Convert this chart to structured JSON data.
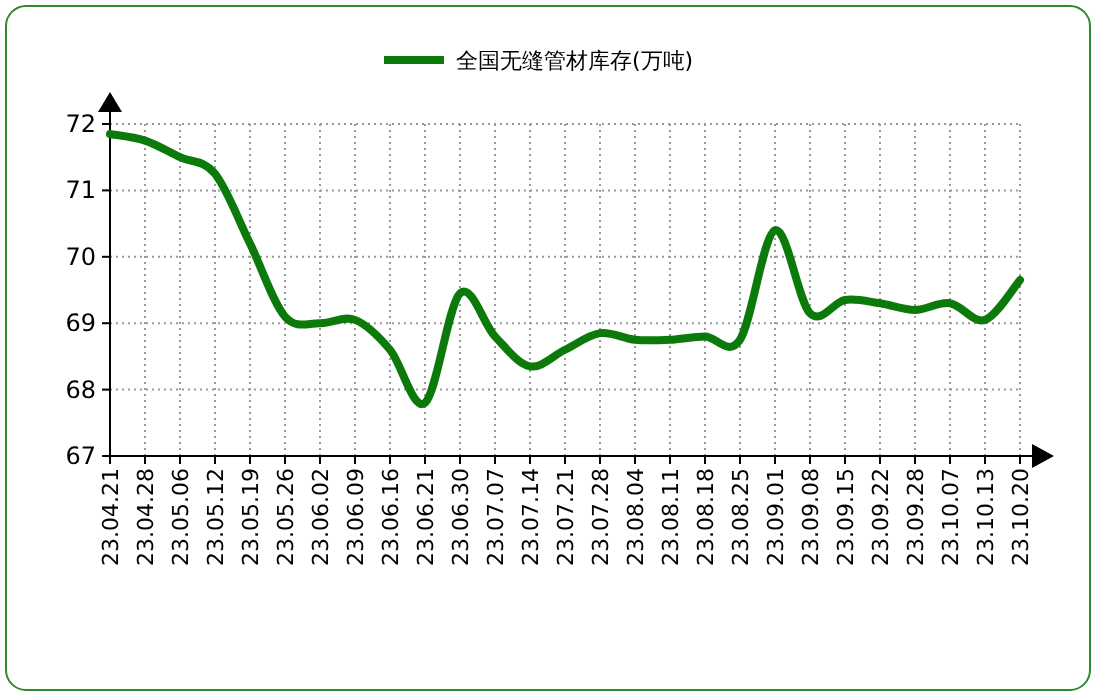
{
  "chart_data": {
    "type": "line",
    "categories": [
      "23.04.21",
      "23.04.28",
      "23.05.06",
      "23.05.12",
      "23.05.19",
      "23.05.26",
      "23.06.02",
      "23.06.09",
      "23.06.16",
      "23.06.21",
      "23.06.30",
      "23.07.07",
      "23.07.14",
      "23.07.21",
      "23.07.28",
      "23.08.04",
      "23.08.11",
      "23.08.18",
      "23.08.25",
      "23.09.01",
      "23.09.08",
      "23.09.15",
      "23.09.22",
      "23.09.28",
      "23.10.07",
      "23.10.13",
      "23.10.20"
    ],
    "series": [
      {
        "name": "全国无缝管材库存(万吨)",
        "color": "#0b7a0b",
        "values": [
          71.85,
          71.75,
          71.5,
          71.25,
          70.2,
          69.1,
          69.0,
          69.05,
          68.6,
          67.8,
          69.45,
          68.8,
          68.35,
          68.6,
          68.85,
          68.75,
          68.75,
          68.8,
          68.75,
          70.4,
          69.15,
          69.35,
          69.3,
          69.2,
          69.3,
          69.05,
          69.65
        ]
      }
    ],
    "ylim": [
      67,
      72
    ],
    "yticks": [
      67,
      68,
      69,
      70,
      71,
      72
    ],
    "grid": true,
    "legend": "top",
    "marker": "none",
    "line_style": "solid"
  }
}
